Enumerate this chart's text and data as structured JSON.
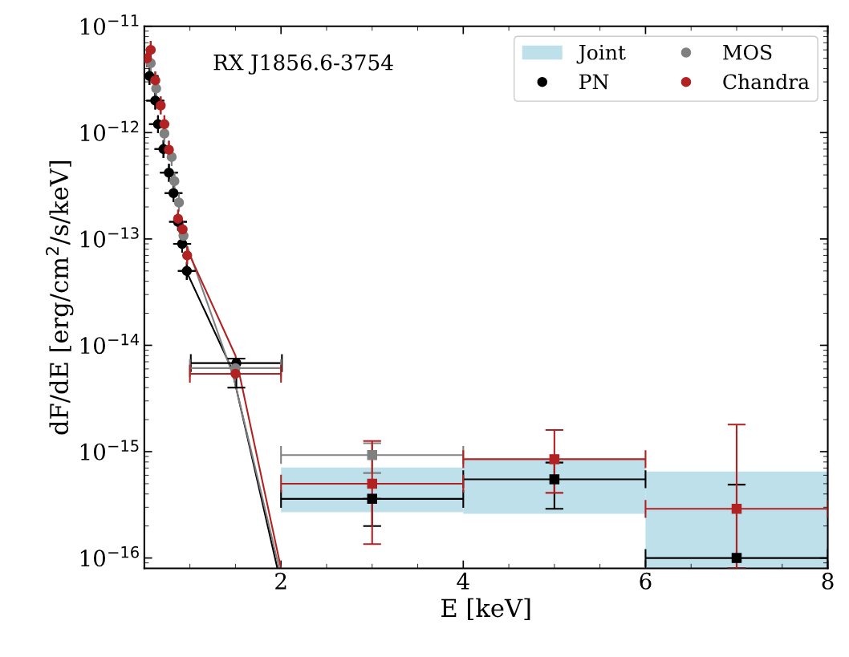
{
  "chart_data": {
    "type": "scatter",
    "xlabel": "E [keV]",
    "ylabel": "dF/dE [erg/cm$^{2}$/s/keV]",
    "annotations": [
      "RX J1856.6-3754"
    ],
    "log": "y",
    "xlim": [
      0.5,
      8
    ],
    "xticks": [
      2,
      4,
      6,
      8
    ],
    "ylim": [
      8e-17,
      1e-11
    ],
    "yticks": [
      {
        "value": 1e-11,
        "label": "10$^{−11}$"
      },
      {
        "value": 1e-12,
        "label": "10$^{−12}$"
      },
      {
        "value": 1e-13,
        "label": "10$^{−13}$"
      },
      {
        "value": 1e-14,
        "label": "10$^{−14}$"
      },
      {
        "value": 1e-15,
        "label": "10$^{−15}$"
      },
      {
        "value": 1e-16,
        "label": "10$^{−16}$"
      }
    ],
    "grid": false,
    "legend": "top right",
    "series": [
      {
        "name": "Joint",
        "type": "bar",
        "color": "#add8e6",
        "x": [
          3,
          5,
          7
        ],
        "base": [
          2.7e-16,
          2.6e-16,
          8e-17
        ],
        "values": [
          4.4e-16,
          5.9e-16,
          5.7e-16
        ]
      },
      {
        "type": "line",
        "color": "#000000",
        "x": [
          0.97,
          1.46,
          1.96
        ],
        "values": [
          4.8e-14,
          6e-15,
          8e-17
        ]
      },
      {
        "type": "line",
        "color": "#808080",
        "x": [
          0.93,
          1.48,
          1.98
        ],
        "values": [
          1.07e-13,
          5e-15,
          8e-17
        ]
      },
      {
        "type": "line",
        "color": "#b22222",
        "x": [
          1.0,
          1.5,
          2.0
        ],
        "values": [
          7e-14,
          8e-15,
          8e-17
        ]
      },
      {
        "name": "PN",
        "marker": "circle",
        "color": "#000000",
        "x": [
          0.557,
          0.62,
          0.65,
          0.71,
          0.77,
          0.82,
          0.87,
          0.915,
          0.966,
          1.51
        ],
        "values": [
          3.4e-12,
          2e-12,
          1.2e-12,
          7e-13,
          4.2e-13,
          2.7e-13,
          1.45e-13,
          9e-14,
          5e-14,
          6.8e-15
        ],
        "xerrors": [
          null,
          null,
          null,
          null,
          null,
          null,
          null,
          null,
          null,
          0.5
        ],
        "errors": [
          null,
          null,
          null,
          null,
          null,
          null,
          null,
          null,
          null,
          [
            4e-15,
            7.5e-15
          ]
        ]
      },
      {
        "name": "MOS",
        "marker": "circle",
        "color": "#808080",
        "x": [
          0.57,
          0.63,
          0.72,
          0.8,
          0.83,
          0.88,
          0.93,
          1.5
        ],
        "values": [
          4.5e-12,
          2.6e-12,
          9.8e-13,
          5.9e-13,
          3.5e-13,
          2.2e-13,
          1.07e-13,
          6.1e-15
        ],
        "xerrors": [
          null,
          null,
          null,
          null,
          null,
          null,
          null,
          0.5
        ]
      },
      {
        "name": "Chandra",
        "marker": "circle",
        "color": "#b22222",
        "x": [
          0.53,
          0.57,
          0.62,
          0.68,
          0.72,
          0.77,
          0.87,
          0.92,
          0.97,
          1.5
        ],
        "values": [
          5e-12,
          6e-12,
          3.1e-12,
          1.8e-12,
          1.2e-12,
          6.9e-13,
          1.55e-13,
          1.23e-13,
          7e-14,
          5.4e-15
        ],
        "xerrors": [
          null,
          null,
          null,
          null,
          null,
          null,
          null,
          null,
          null,
          0.5
        ]
      },
      {
        "marker": "square",
        "color": "#808080",
        "x": [
          3
        ],
        "values": [
          9.3e-16
        ],
        "xerrors": [
          1
        ],
        "errors": [
          [
            6.3e-16,
            1.2e-15
          ]
        ]
      },
      {
        "marker": "square",
        "color": "#000000",
        "x": [
          3,
          5,
          7
        ],
        "values": [
          3.6e-16,
          5.5e-16,
          1e-16
        ],
        "xerrors": [
          1,
          1,
          1
        ],
        "errors": [
          [
            2e-16,
            3.6e-16
          ],
          [
            2.9e-16,
            7.9e-16
          ],
          [
            8e-17,
            4.9e-16
          ]
        ]
      },
      {
        "marker": "square",
        "color": "#b22222",
        "x": [
          3,
          5,
          7
        ],
        "values": [
          5e-16,
          8.5e-16,
          2.9e-16
        ],
        "xerrors": [
          1,
          1,
          1
        ],
        "errors": [
          [
            1.35e-16,
            1.26e-15
          ],
          [
            4.1e-16,
            1.6e-15
          ],
          [
            8e-17,
            1.8e-15
          ]
        ]
      }
    ]
  }
}
